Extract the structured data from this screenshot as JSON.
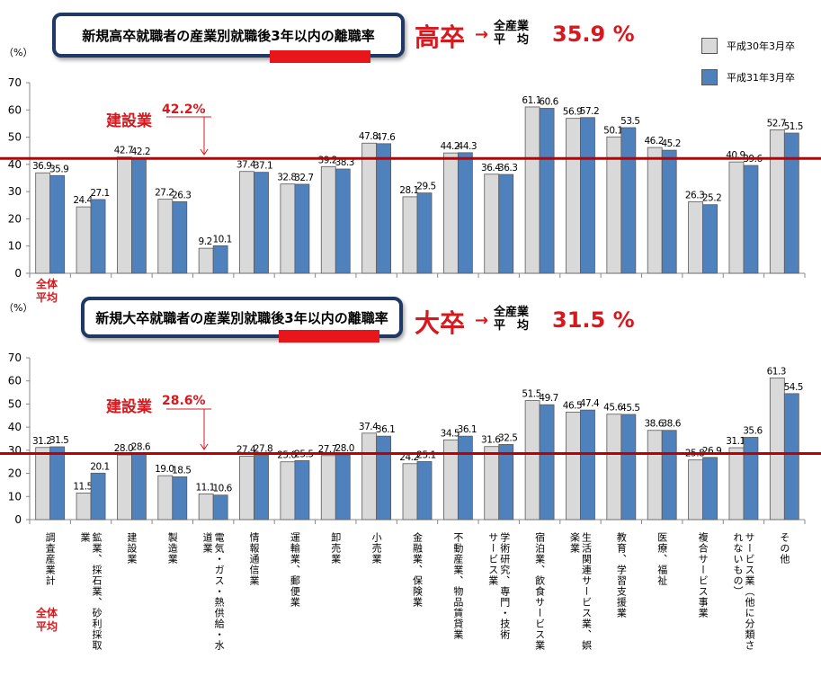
{
  "chart_data": [
    {
      "type": "bar",
      "title": "新規高卒就職者の産業別就職後3年以内の離職率",
      "category_label": "高卒",
      "avg_label": "全産業平均",
      "avg_value_text": "35.9 %",
      "yunit": "（%）",
      "ylim": [
        0,
        70
      ],
      "yticks": [
        0,
        10,
        20,
        30,
        40,
        50,
        60,
        70
      ],
      "reference_line": 42.2,
      "highlight_label": "建設業",
      "highlight_value": "42.2%",
      "side_label_lines": [
        "全体",
        "平均"
      ],
      "series": [
        {
          "name": "平成30年3月卒",
          "color": "#d9d9d9",
          "values": [
            36.9,
            24.4,
            42.7,
            27.2,
            9.2,
            37.4,
            32.8,
            39.2,
            47.8,
            28.1,
            44.2,
            36.4,
            61.1,
            56.9,
            50.1,
            46.2,
            26.3,
            40.9,
            52.7
          ]
        },
        {
          "name": "平成31年3月卒",
          "color": "#4f81bd",
          "values": [
            35.9,
            27.1,
            42.2,
            26.3,
            10.1,
            37.1,
            32.7,
            38.3,
            47.6,
            29.5,
            44.3,
            36.3,
            60.6,
            57.2,
            53.5,
            45.2,
            25.2,
            39.6,
            51.5
          ]
        }
      ]
    },
    {
      "type": "bar",
      "title": "新規大卒就職者の産業別就職後3年以内の離職率",
      "category_label": "大卒",
      "avg_label": "全産業平均",
      "avg_value_text": "31.5 %",
      "yunit": "（%）",
      "ylim": [
        0,
        70
      ],
      "yticks": [
        0,
        10,
        20,
        30,
        40,
        50,
        60,
        70
      ],
      "reference_line": 28.6,
      "highlight_label": "建設業",
      "highlight_value": "28.6%",
      "side_label_lines": [
        "全体",
        "平均"
      ],
      "categories": [
        [
          "調査産業計"
        ],
        [
          "鉱業、採石業、砂利採取",
          "業"
        ],
        [
          "建設業"
        ],
        [
          "製造業"
        ],
        [
          "電気・ガス・熱供給・水",
          "道業"
        ],
        [
          "情報通信業"
        ],
        [
          "運輸業、郵便業"
        ],
        [
          "卸売業"
        ],
        [
          "小売業"
        ],
        [
          "金融業、保険業"
        ],
        [
          "不動産業、物品賃貸業"
        ],
        [
          "学術研究、専門・技術",
          "サービス業"
        ],
        [
          "宿泊業、飲食サービス業"
        ],
        [
          "生活関連サービス業、娯",
          "楽業"
        ],
        [
          "教育、学習支援業"
        ],
        [
          "医療、福祉"
        ],
        [
          "複合サービス事業"
        ],
        [
          "サービス業（他に分類さ",
          "れないもの）"
        ],
        [
          "その他"
        ]
      ],
      "series": [
        {
          "name": "平成30年3月卒",
          "color": "#d9d9d9",
          "values": [
            31.2,
            11.5,
            28.0,
            19.0,
            11.1,
            27.4,
            25.0,
            27.7,
            37.4,
            24.2,
            34.5,
            31.6,
            51.5,
            46.5,
            45.6,
            38.6,
            25.8,
            31.1,
            61.3
          ]
        },
        {
          "name": "平成31年3月卒",
          "color": "#4f81bd",
          "values": [
            31.5,
            20.1,
            28.6,
            18.5,
            10.6,
            27.8,
            25.5,
            28.0,
            36.1,
            25.1,
            36.1,
            32.5,
            49.7,
            47.4,
            45.5,
            38.6,
            26.9,
            35.6,
            54.5
          ]
        }
      ]
    }
  ],
  "legend": {
    "items": [
      "平成30年3月卒",
      "平成31年3月卒"
    ]
  },
  "avg_label_parts": {
    "top": "全産業",
    "bottom": "平　均"
  },
  "arrow_glyph": "→"
}
